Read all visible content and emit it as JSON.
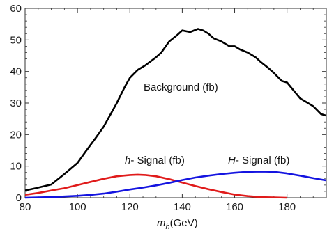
{
  "chart_data": {
    "type": "line",
    "title": "",
    "xlabel": {
      "main": "m",
      "sub": "h",
      "unit": "(GeV)"
    },
    "ylabel": "",
    "xlim": [
      80,
      195
    ],
    "ylim": [
      0,
      60
    ],
    "xticks": [
      80,
      100,
      120,
      140,
      160,
      180
    ],
    "yticks": [
      0,
      10,
      20,
      30,
      40,
      50,
      60
    ],
    "grid": false,
    "legend": "none",
    "series": [
      {
        "color": "#000000",
        "points": [
          [
            80,
            2.3
          ],
          [
            84,
            3.0
          ],
          [
            90,
            4.2
          ],
          [
            95,
            7.5
          ],
          [
            100,
            11
          ],
          [
            103,
            14.5
          ],
          [
            107,
            19
          ],
          [
            110,
            22.5
          ],
          [
            115,
            30
          ],
          [
            118,
            35
          ],
          [
            120,
            38
          ],
          [
            123,
            40.5
          ],
          [
            126,
            42
          ],
          [
            130,
            44.5
          ],
          [
            132,
            46
          ],
          [
            135,
            49.5
          ],
          [
            138,
            51.5
          ],
          [
            140,
            53
          ],
          [
            143,
            52.5
          ],
          [
            146,
            53.5
          ],
          [
            148,
            53
          ],
          [
            150,
            52
          ],
          [
            152,
            50.5
          ],
          [
            155,
            49.5
          ],
          [
            158,
            48
          ],
          [
            160,
            48
          ],
          [
            162,
            47
          ],
          [
            165,
            46
          ],
          [
            168,
            44.5
          ],
          [
            170,
            43
          ],
          [
            173,
            41
          ],
          [
            175,
            39.5
          ],
          [
            178,
            37
          ],
          [
            180,
            36.5
          ],
          [
            183,
            33.5
          ],
          [
            185,
            31.5
          ],
          [
            188,
            30
          ],
          [
            190,
            29
          ],
          [
            193,
            26.5
          ],
          [
            195,
            26
          ]
        ]
      },
      {
        "color": "#e01b1b",
        "points": [
          [
            80,
            0.9
          ],
          [
            85,
            1.5
          ],
          [
            90,
            2.3
          ],
          [
            95,
            3.0
          ],
          [
            100,
            4.0
          ],
          [
            105,
            5.0
          ],
          [
            110,
            6.0
          ],
          [
            115,
            6.8
          ],
          [
            120,
            7.2
          ],
          [
            123,
            7.3
          ],
          [
            126,
            7.2
          ],
          [
            130,
            6.8
          ],
          [
            135,
            5.9
          ],
          [
            140,
            4.8
          ],
          [
            145,
            3.7
          ],
          [
            150,
            2.7
          ],
          [
            155,
            1.8
          ],
          [
            160,
            1.0
          ],
          [
            165,
            0.5
          ],
          [
            170,
            0.2
          ],
          [
            175,
            0.1
          ],
          [
            180,
            0.0
          ]
        ]
      },
      {
        "color": "#1414e0",
        "points": [
          [
            80,
            0.0
          ],
          [
            85,
            0.1
          ],
          [
            90,
            0.2
          ],
          [
            95,
            0.4
          ],
          [
            100,
            0.6
          ],
          [
            105,
            0.9
          ],
          [
            110,
            1.3
          ],
          [
            115,
            1.9
          ],
          [
            120,
            2.6
          ],
          [
            125,
            3.2
          ],
          [
            130,
            3.9
          ],
          [
            135,
            4.7
          ],
          [
            140,
            5.6
          ],
          [
            145,
            6.4
          ],
          [
            150,
            7.0
          ],
          [
            155,
            7.5
          ],
          [
            160,
            7.9
          ],
          [
            165,
            8.2
          ],
          [
            170,
            8.3
          ],
          [
            175,
            8.2
          ],
          [
            180,
            7.7
          ],
          [
            185,
            7.0
          ],
          [
            190,
            6.2
          ],
          [
            195,
            5.5
          ]
        ]
      }
    ],
    "annotations": {
      "background": "Background (fb)",
      "h_signal": {
        "italic": "h",
        "rest": "- Signal (fb)"
      },
      "H_signal": {
        "italic": "H",
        "rest": "- Signal (fb)"
      }
    }
  }
}
